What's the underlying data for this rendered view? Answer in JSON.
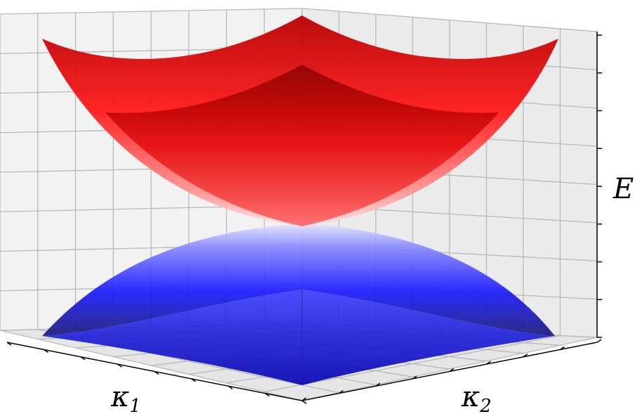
{
  "figure": {
    "type": "3d-surface",
    "surfaces": [
      {
        "name": "",
        "color": "#ff0000",
        "shape": "upper cone-like paraboloid (energy band)"
      },
      {
        "name": "",
        "color": "#0000ff",
        "shape": "lower inverted cone-like paraboloid (energy band)"
      }
    ],
    "axes": {
      "x": {
        "label": "κ",
        "subscript": "1"
      },
      "y": {
        "label": "κ",
        "subscript": "2"
      },
      "z": {
        "label": "E"
      }
    },
    "grid": true,
    "tick_labels_shown": false
  }
}
